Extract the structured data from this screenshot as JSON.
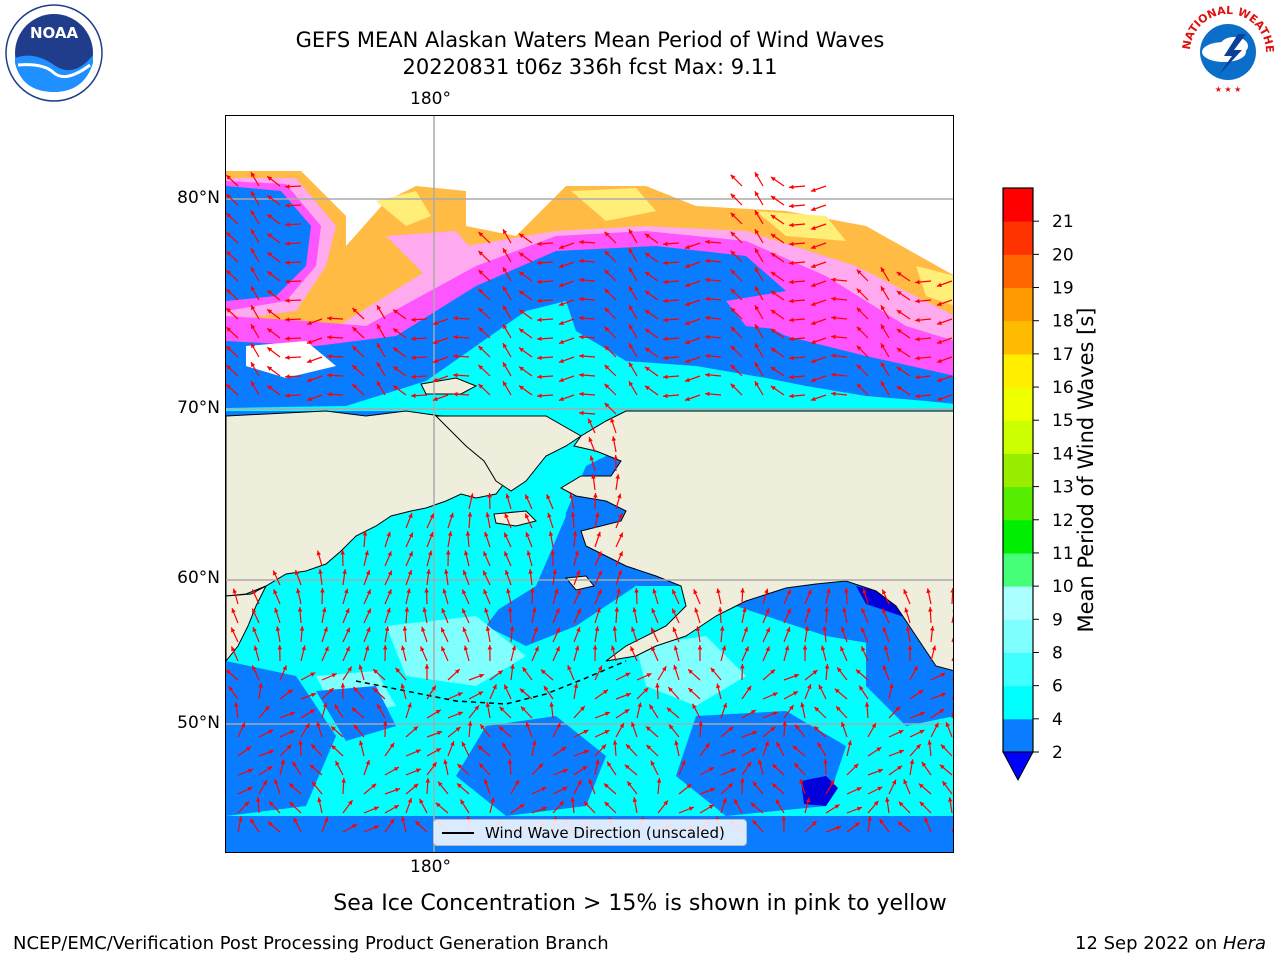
{
  "header": {
    "title_line1": "GEFS MEAN Alaskan Waters Mean Period of Wind Waves",
    "title_line2": "20220831 t06z 336h fcst   Max: 9.11"
  },
  "map": {
    "top_lon_label": "180°",
    "bottom_lon_label": "180°",
    "lat_labels": [
      "80°N",
      "70°N",
      "60°N",
      "50°N"
    ],
    "legend": "Wind Wave Direction (unscaled)",
    "colors": {
      "land": "#efeedc",
      "ice_pink": "#ff55ff",
      "ice_light_pink": "#ffaaee",
      "ice_orange": "#ffbb44",
      "ice_yellow": "#ffee77",
      "water_blue": "#0a7cff",
      "water_cyan": "#00ffff",
      "water_pale": "#80ffff",
      "water_dark": "#0000dd",
      "arrow": "#ff0000",
      "grid": "#aaaaaa"
    }
  },
  "colorbar": {
    "label": "Mean Period of Wind Waves [s]",
    "ticks": [
      "2",
      "4",
      "6",
      "8",
      "9",
      "10",
      "11",
      "12",
      "13",
      "14",
      "15",
      "16",
      "17",
      "18",
      "19",
      "20",
      "21"
    ],
    "colors": [
      "#0a7cff",
      "#00ffff",
      "#40ffff",
      "#80ffff",
      "#aaffff",
      "#44ff77",
      "#00ee00",
      "#55ee00",
      "#99ee00",
      "#ccff00",
      "#eeff00",
      "#ffee00",
      "#ffbb00",
      "#ff9900",
      "#ff6600",
      "#ff3300",
      "#ff0000"
    ],
    "extend_color": "#0000ff"
  },
  "footer": {
    "note": "Sea Ice Concentration > 15% is shown in pink to yellow",
    "credit": "NCEP/EMC/Verification Post Processing Product Generation Branch",
    "date": "12 Sep 2022 on ",
    "host": "Hera"
  },
  "logos": {
    "noaa_text": "NOAA",
    "nws_text": "NATIONAL WEATHER SERVICE"
  }
}
